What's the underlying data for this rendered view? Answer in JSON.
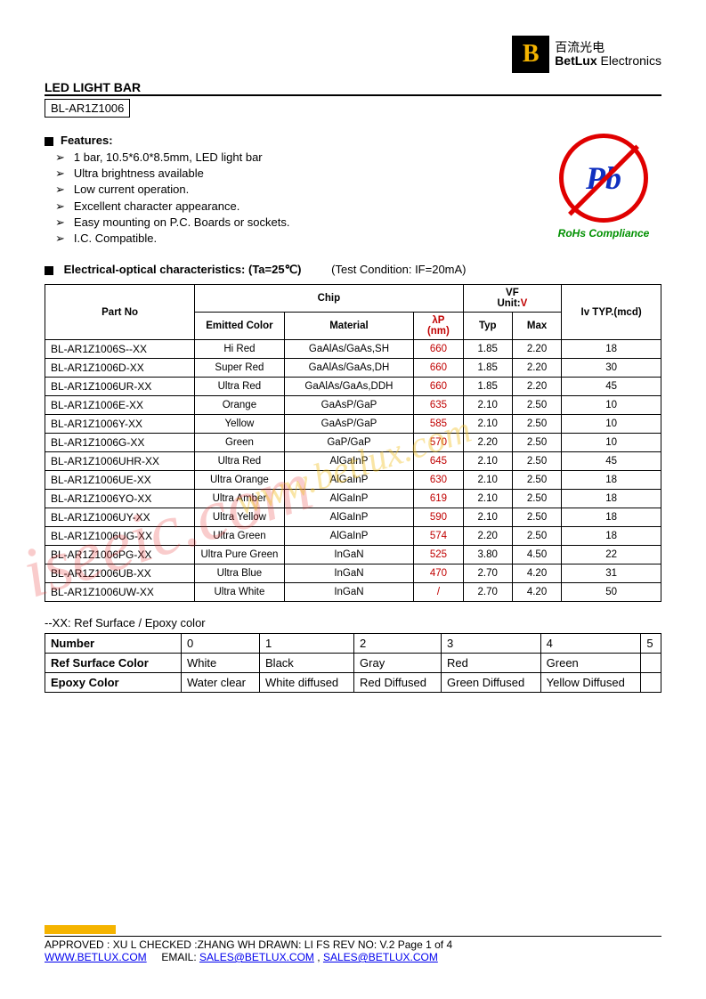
{
  "logo": {
    "cn": "百流光电",
    "en_bold": "BetLux",
    "en_rest": " Electronics"
  },
  "title": "LED LIGHT BAR",
  "part": "BL-AR1Z1006",
  "features_heading": "Features:",
  "features": [
    "1 bar, 10.5*6.0*8.5mm, LED light bar",
    "Ultra brightness available",
    "Low current operation.",
    "Excellent character appearance.",
    "Easy mounting on P.C. Boards or sockets.",
    "I.C. Compatible."
  ],
  "rohs": {
    "symbol": "Pb",
    "label": "RoHs Compliance"
  },
  "char_heading": "Electrical-optical characteristics: (Ta=25℃)",
  "test_condition": "(Test Condition: IF=20mA)",
  "spec_headers": {
    "partno": "Part No",
    "chip": "Chip",
    "emitted": "Emitted Color",
    "material": "Material",
    "lambda": "λP",
    "lambda_unit": "(nm)",
    "vf": "VF",
    "vf_unit": "Unit:",
    "v": "V",
    "typ": "Typ",
    "max": "Max",
    "iv": "Iv TYP.(mcd)"
  },
  "spec_rows": [
    {
      "pn": "BL-AR1Z1006S--XX",
      "color": "Hi Red",
      "mat": "GaAlAs/GaAs,SH",
      "wl": "660",
      "typ": "1.85",
      "max": "2.20",
      "iv": "18"
    },
    {
      "pn": "BL-AR1Z1006D-XX",
      "color": "Super Red",
      "mat": "GaAlAs/GaAs,DH",
      "wl": "660",
      "typ": "1.85",
      "max": "2.20",
      "iv": "30"
    },
    {
      "pn": "BL-AR1Z1006UR-XX",
      "color": "Ultra Red",
      "mat": "GaAlAs/GaAs,DDH",
      "wl": "660",
      "typ": "1.85",
      "max": "2.20",
      "iv": "45"
    },
    {
      "pn": "BL-AR1Z1006E-XX",
      "color": "Orange",
      "mat": "GaAsP/GaP",
      "wl": "635",
      "typ": "2.10",
      "max": "2.50",
      "iv": "10"
    },
    {
      "pn": "BL-AR1Z1006Y-XX",
      "color": "Yellow",
      "mat": "GaAsP/GaP",
      "wl": "585",
      "typ": "2.10",
      "max": "2.50",
      "iv": "10"
    },
    {
      "pn": "BL-AR1Z1006G-XX",
      "color": "Green",
      "mat": "GaP/GaP",
      "wl": "570",
      "typ": "2.20",
      "max": "2.50",
      "iv": "10"
    },
    {
      "pn": "BL-AR1Z1006UHR-XX",
      "color": "Ultra Red",
      "mat": "AlGaInP",
      "wl": "645",
      "typ": "2.10",
      "max": "2.50",
      "iv": "45"
    },
    {
      "pn": "BL-AR1Z1006UE-XX",
      "color": "Ultra Orange",
      "mat": "AlGaInP",
      "wl": "630",
      "typ": "2.10",
      "max": "2.50",
      "iv": "18"
    },
    {
      "pn": "BL-AR1Z1006YO-XX",
      "color": "Ultra Amber",
      "mat": "AlGaInP",
      "wl": "619",
      "typ": "2.10",
      "max": "2.50",
      "iv": "18"
    },
    {
      "pn": "BL-AR1Z1006UY-XX",
      "color": "Ultra Yellow",
      "mat": "AlGaInP",
      "wl": "590",
      "typ": "2.10",
      "max": "2.50",
      "iv": "18"
    },
    {
      "pn": "BL-AR1Z1006UG-XX",
      "color": "Ultra Green",
      "mat": "AlGaInP",
      "wl": "574",
      "typ": "2.20",
      "max": "2.50",
      "iv": "18"
    },
    {
      "pn": "BL-AR1Z1006PG-XX",
      "color": "Ultra Pure Green",
      "mat": "InGaN",
      "wl": "525",
      "typ": "3.80",
      "max": "4.50",
      "iv": "22"
    },
    {
      "pn": "BL-AR1Z1006UB-XX",
      "color": "Ultra Blue",
      "mat": "InGaN",
      "wl": "470",
      "typ": "2.70",
      "max": "4.20",
      "iv": "31"
    },
    {
      "pn": "BL-AR1Z1006UW-XX",
      "color": "Ultra White",
      "mat": "InGaN",
      "wl": "/",
      "typ": "2.70",
      "max": "4.20",
      "iv": "50"
    }
  ],
  "xx_note": "--XX: Ref Surface / Epoxy color",
  "xx_headers": [
    "Number",
    "0",
    "1",
    "2",
    "3",
    "4",
    "5"
  ],
  "xx_rows": [
    {
      "label": "Ref Surface Color",
      "cells": [
        "White",
        "Black",
        "Gray",
        "Red",
        "Green",
        ""
      ]
    },
    {
      "label": "Epoxy Color",
      "cells": [
        "Water clear",
        "White diffused",
        "Red Diffused",
        "Green Diffused",
        "Yellow Diffused",
        ""
      ]
    }
  ],
  "footer": {
    "approved": "APPROVED : XU L    CHECKED :ZHANG WH    DRAWN: LI FS       REV NO: V.2      Page 1 of 4",
    "site": "WWW.BETLUX.COM",
    "email_label": "EMAIL: ",
    "email1": "SALES@BETLUX.COM",
    "sep": " , ",
    "email2": "SALES@BETLUX.COM"
  },
  "watermark1": "iseeic.com",
  "watermark2": "www.betlux.com"
}
